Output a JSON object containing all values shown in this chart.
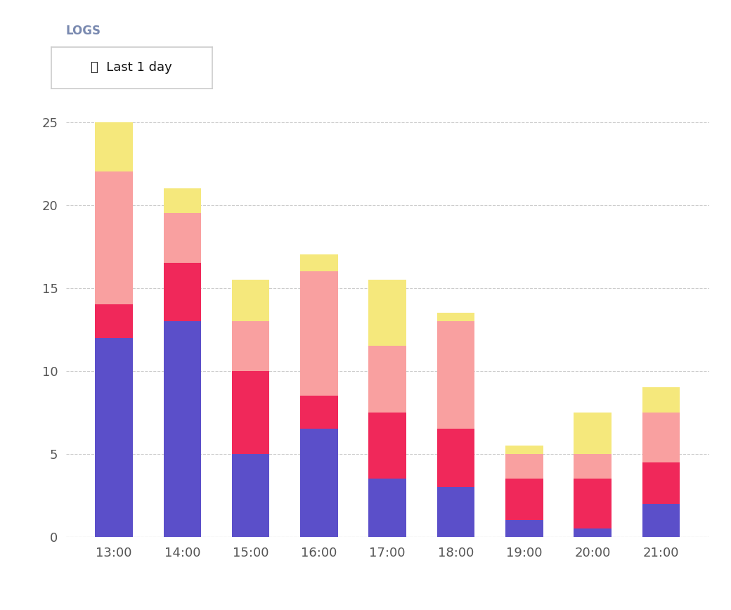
{
  "categories": [
    "13:00",
    "14:00",
    "15:00",
    "16:00",
    "17:00",
    "18:00",
    "19:00",
    "20:00",
    "21:00"
  ],
  "layers": {
    "purple": [
      12.0,
      13.0,
      5.0,
      6.5,
      3.5,
      3.0,
      1.0,
      0.5,
      2.0
    ],
    "red": [
      2.0,
      3.5,
      5.0,
      2.0,
      4.0,
      3.5,
      2.5,
      3.0,
      2.5
    ],
    "salmon": [
      8.0,
      3.0,
      3.0,
      7.5,
      4.0,
      6.5,
      1.5,
      1.5,
      3.0
    ],
    "yellow": [
      3.0,
      1.5,
      2.5,
      1.0,
      4.0,
      0.5,
      0.5,
      2.5,
      1.5
    ]
  },
  "colors": {
    "purple": "#5B4FC9",
    "red": "#F0285A",
    "salmon": "#F9A0A0",
    "yellow": "#F5E87C"
  },
  "ylim": [
    0,
    25
  ],
  "yticks": [
    0,
    5,
    10,
    15,
    20,
    25
  ],
  "background_color": "#FFFFFF",
  "plot_bg_color": "#FFFFFF",
  "grid_color": "#CCCCCC",
  "title": "LOGS",
  "badge_text": "⏰  Last 1 day",
  "title_color": "#7A8AB0",
  "tick_color": "#555555",
  "bar_width": 0.55
}
